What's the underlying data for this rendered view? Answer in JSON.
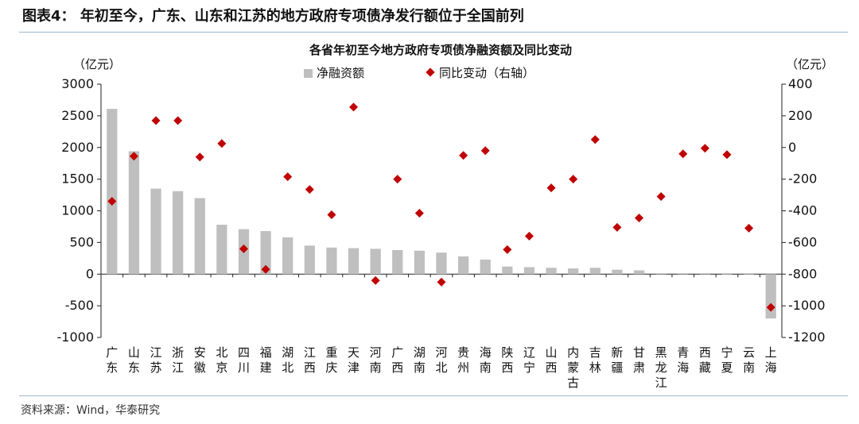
{
  "figure": {
    "label": "图表4：",
    "title": "年初至今，广东、山东和江苏的地方政府专项债净发行额位于全国前列",
    "source": "资料来源：Wind，华泰研究"
  },
  "chart_data": {
    "type": "bar+scatter",
    "title": "各省年初至今地方政府专项债净融资额及同比变动",
    "left_unit": "（亿元）",
    "right_unit": "（亿元）",
    "ylim_left": [
      -1000,
      3000
    ],
    "ylim_right": [
      -1200,
      400
    ],
    "yticks_left": [
      3000,
      2500,
      2000,
      1500,
      1000,
      500,
      0,
      -500,
      -1000
    ],
    "yticks_right": [
      400,
      200,
      0,
      -200,
      -400,
      -600,
      -800,
      -1000,
      -1200
    ],
    "legend": {
      "position": "top",
      "bar_label": "净融资额",
      "scatter_label": "同比变动（右轴）"
    },
    "colors": {
      "bar": "#bfbfbf",
      "scatter": "#c00000",
      "axis": "#222222"
    },
    "categories": [
      "广东",
      "山东",
      "江苏",
      "浙江",
      "安徽",
      "北京",
      "四川",
      "福建",
      "湖北",
      "江西",
      "重庆",
      "天津",
      "河南",
      "广西",
      "湖南",
      "河北",
      "贵州",
      "海南",
      "陕西",
      "辽宁",
      "山西",
      "内蒙古",
      "吉林",
      "新疆",
      "甘肃",
      "黑龙江",
      "青海",
      "西藏",
      "宁夏",
      "云南",
      "上海"
    ],
    "series": [
      {
        "name": "净融资额",
        "axis": "left",
        "values": [
          2610,
          1940,
          1350,
          1310,
          1200,
          780,
          710,
          680,
          580,
          450,
          420,
          410,
          400,
          380,
          370,
          340,
          280,
          230,
          120,
          110,
          100,
          90,
          100,
          70,
          60,
          0,
          0,
          0,
          -10,
          -10,
          -700
        ]
      },
      {
        "name": "同比变动（右轴）",
        "axis": "right",
        "values": [
          -340,
          -55,
          170,
          170,
          -60,
          25,
          -640,
          -770,
          -185,
          -265,
          -425,
          255,
          -840,
          -200,
          -415,
          -850,
          -50,
          -20,
          -645,
          -560,
          -255,
          -200,
          50,
          -505,
          -445,
          -310,
          -40,
          -5,
          -45,
          -510,
          -1010
        ]
      }
    ]
  }
}
